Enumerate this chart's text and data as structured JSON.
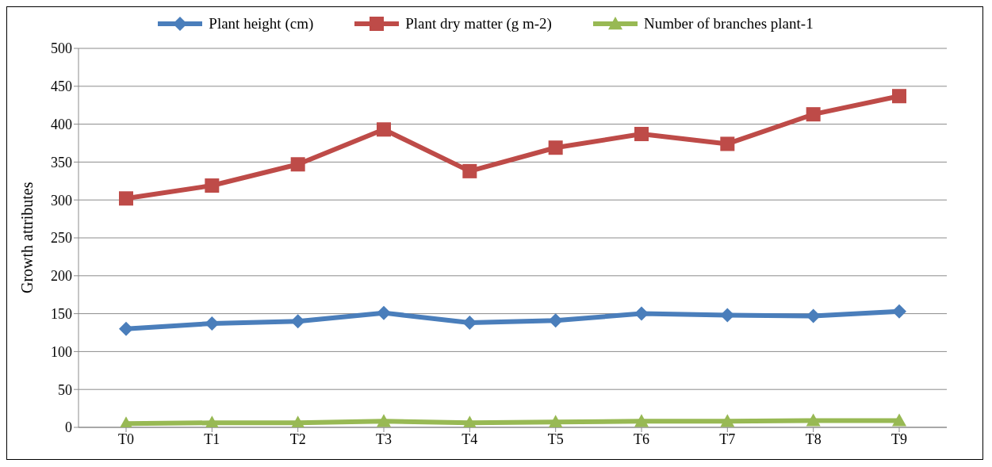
{
  "chart_data": {
    "type": "line",
    "ylabel": "Growth attributes",
    "categories": [
      "T0",
      "T1",
      "T2",
      "T3",
      "T4",
      "T5",
      "T6",
      "T7",
      "T8",
      "T9"
    ],
    "series": [
      {
        "name": "Plant height (cm)",
        "color": "#4a7ebb",
        "marker": "diamond",
        "values": [
          130,
          137,
          140,
          151,
          138,
          141,
          150,
          148,
          147,
          153
        ]
      },
      {
        "name": "Plant dry matter (g m-2)",
        "color": "#be4b48",
        "marker": "square",
        "values": [
          302,
          319,
          347,
          393,
          338,
          369,
          387,
          374,
          413,
          437
        ]
      },
      {
        "name": "Number of branches plant-1",
        "color": "#98b954",
        "marker": "triangle",
        "values": [
          5,
          6,
          6,
          8,
          6,
          7,
          8,
          8,
          9,
          9
        ]
      }
    ],
    "ylim": [
      0,
      500
    ],
    "yticks": [
      0,
      50,
      100,
      150,
      200,
      250,
      300,
      350,
      400,
      450,
      500
    ],
    "grid": "y",
    "legend": "top",
    "line_style": "solid"
  }
}
